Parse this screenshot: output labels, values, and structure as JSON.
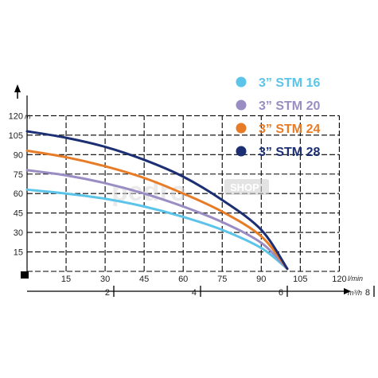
{
  "chart_data": {
    "type": "line",
    "xlabel": "l/min",
    "ylabel": "m",
    "xlim": [
      0,
      120
    ],
    "ylim": [
      0,
      120
    ],
    "x_ticks": [
      "15",
      "30",
      "45",
      "60",
      "75",
      "90",
      "105",
      "120"
    ],
    "y_ticks": [
      "15",
      "30",
      "45",
      "60",
      "75",
      "90",
      "105",
      "120"
    ],
    "secondary_axis": {
      "label": "m³/h",
      "ticks": [
        "2",
        "4",
        "6",
        "8"
      ]
    },
    "grid": true,
    "legend_position": "top-right",
    "series": [
      {
        "name": "3” STM 16",
        "color": "#5BC4E8",
        "x": [
          0,
          15,
          30,
          45,
          60,
          75,
          90,
          100
        ],
        "y": [
          63,
          60,
          56,
          50,
          42,
          32,
          18,
          2
        ]
      },
      {
        "name": "3” STM 20",
        "color": "#9A8DC4",
        "x": [
          0,
          15,
          30,
          45,
          60,
          75,
          90,
          100
        ],
        "y": [
          78,
          74,
          68,
          60,
          50,
          38,
          22,
          2
        ]
      },
      {
        "name": "3” STM 24",
        "color": "#E87C26",
        "x": [
          0,
          15,
          30,
          45,
          60,
          75,
          90,
          100
        ],
        "y": [
          93,
          88,
          81,
          72,
          60,
          46,
          27,
          2
        ]
      },
      {
        "name": "3” STM 28",
        "color": "#1B2F72",
        "x": [
          0,
          15,
          30,
          45,
          60,
          75,
          90,
          100
        ],
        "y": [
          108,
          103,
          96,
          86,
          73,
          55,
          32,
          2
        ]
      }
    ]
  },
  "watermark": {
    "text": "pedro",
    "badge": "SHOP"
  }
}
